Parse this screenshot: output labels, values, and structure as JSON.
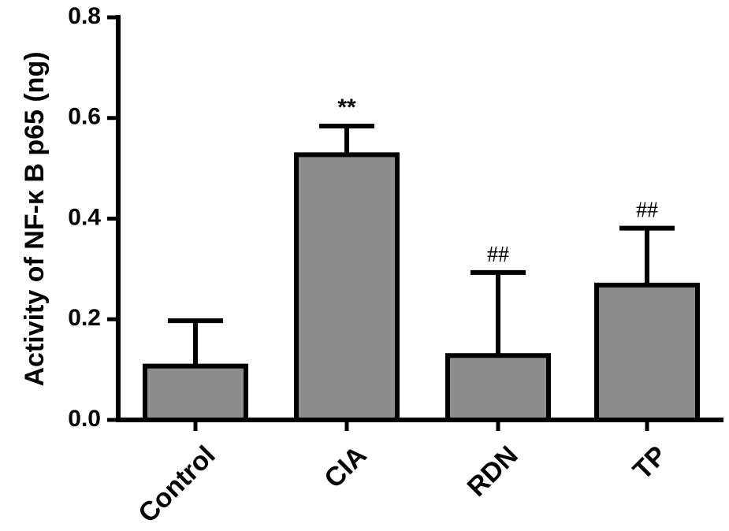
{
  "chart_data": {
    "type": "bar",
    "title": "",
    "xlabel": "",
    "ylabel": "Activity of NF-κ B p65 (ng)",
    "ylim": [
      0,
      0.8
    ],
    "yticks": [
      "0.0",
      "0.2",
      "0.4",
      "0.6",
      "0.8"
    ],
    "ytick_values": [
      0,
      0.2,
      0.4,
      0.6,
      0.8
    ],
    "categories": [
      "Control",
      "CIA",
      "RDN",
      "TP"
    ],
    "values": [
      0.107,
      0.527,
      0.128,
      0.268
    ],
    "errors": [
      0.09,
      0.057,
      0.165,
      0.113
    ],
    "annotations": [
      "",
      "**",
      "##",
      "##"
    ],
    "bar_color": "#8c8c8c",
    "grid": false,
    "legend": "none"
  }
}
